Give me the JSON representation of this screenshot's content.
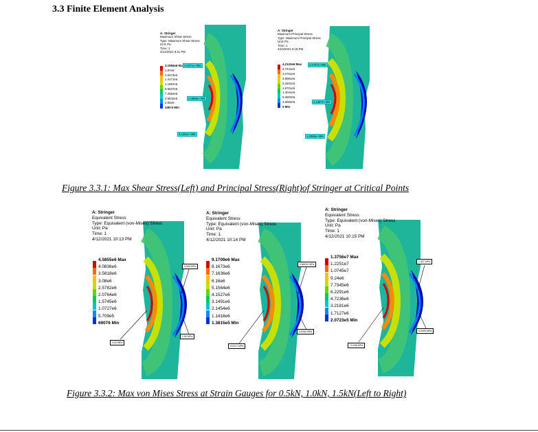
{
  "section_heading": "3.3 Finite Element Analysis",
  "figure1_caption": "Figure 3.3.1: Max Shear Stress(Left) and Principal Stress(Right)of Stringer at Critical Points",
  "figure2_caption": "Figure 3.3.2: Max von Mises Stress at Strain Gauges for 0.5kN, 1.0kN, 1.5kN(Left to Right)",
  "legend_colors": [
    "#d40000",
    "#ff6a00",
    "#ffc000",
    "#c8e000",
    "#6ad400",
    "#00c864",
    "#00c8c8",
    "#008cff",
    "#0030e0",
    "#0000b4"
  ],
  "shear_stress": {
    "name": "A: Stringer",
    "lines": [
      "Maximum Shear Stress",
      "Type: Maximum Shear Stress",
      "Unit: Pa",
      "Time: 1",
      "4/12/2021 9:11 PM"
    ],
    "legend": [
      "2.1084e6 Max",
      "1.87e6",
      "1.6474e6",
      "1.4171e6",
      "1.1867e6",
      "9.5627e5",
      "7.2584e5",
      "4.9542e5",
      "2.65e5",
      "34574 Min"
    ],
    "probes": [
      "2.0371e+005",
      "2.0996e+005",
      "5.2491e+005"
    ]
  },
  "principal_stress": {
    "name": "A: Stringer",
    "lines": [
      "Maximum Principal Stress",
      "Type: Maximum Principal Stress",
      "Unit: Pa",
      "Time: 1",
      "4/10/2021 9:18 PM"
    ],
    "legend": [
      "4.2122e6 Max",
      "3.7441e6",
      "3.2761e6",
      "2.8081e6",
      "2.3401e6",
      "1.8721e6",
      "1.4041e6",
      "9.3603e5",
      "4.6802e5",
      "0 Min"
    ],
    "probes": [
      "3.0797e+006",
      "4.1387e+006",
      "1.0068e+006"
    ]
  },
  "vm_05": {
    "name": "A: Stringer",
    "lines": [
      "Equivalent Stress",
      "Type: Equivalent (von-Mises) Stress",
      "Unit: Pa",
      "Time: 1",
      "4/12/2021 10:13 PM"
    ],
    "legend": [
      "4.5855e6 Max",
      "4.0836e6",
      "3.5818e6",
      "3.08e6",
      "2.5782e6",
      "2.0764e6",
      "1.5745e6",
      "1.0727e6",
      "5.709e5",
      "69076 Min"
    ],
    "probes": [
      "0.508 MPa",
      "1.80 MPa",
      "4.52 MPa"
    ]
  },
  "vm_10": {
    "name": "A: Stringer",
    "lines": [
      "Equivalent Stress",
      "Type: Equivalent (von-Mises) Stress",
      "Unit: Pa",
      "Time: 1",
      "4/12/2021 10:14 PM"
    ],
    "legend": [
      "9.1709e6 Max",
      "8.1673e6",
      "7.1636e6",
      "6.16e6",
      "5.1564e6",
      "4.1527e6",
      "3.1491e6",
      "2.1454e6",
      "1.1418e6",
      "1.3815e5 Min"
    ],
    "probes": [
      "0.88032 MPa",
      "3.6260 MPa",
      "9.0217 MPa"
    ]
  },
  "vm_15": {
    "name": "A: Stringer",
    "lines": [
      "Equivalent Stress",
      "Type: Equivalent (von-Mises) Stress",
      "Unit: Pa",
      "Time: 1",
      "4/12/2021 10:15 PM"
    ],
    "legend": [
      "1.3756e7 Max",
      "1.2251e7",
      "1.0745e7",
      "9.24e6",
      "7.7345e6",
      "6.2291e6",
      "4.7236e6",
      "3.2181e6",
      "1.7127e6",
      "2.0723e5 Min"
    ],
    "probes": [
      "1.457 MPa",
      "5.0499 MPa",
      "13.056 MPa"
    ]
  }
}
